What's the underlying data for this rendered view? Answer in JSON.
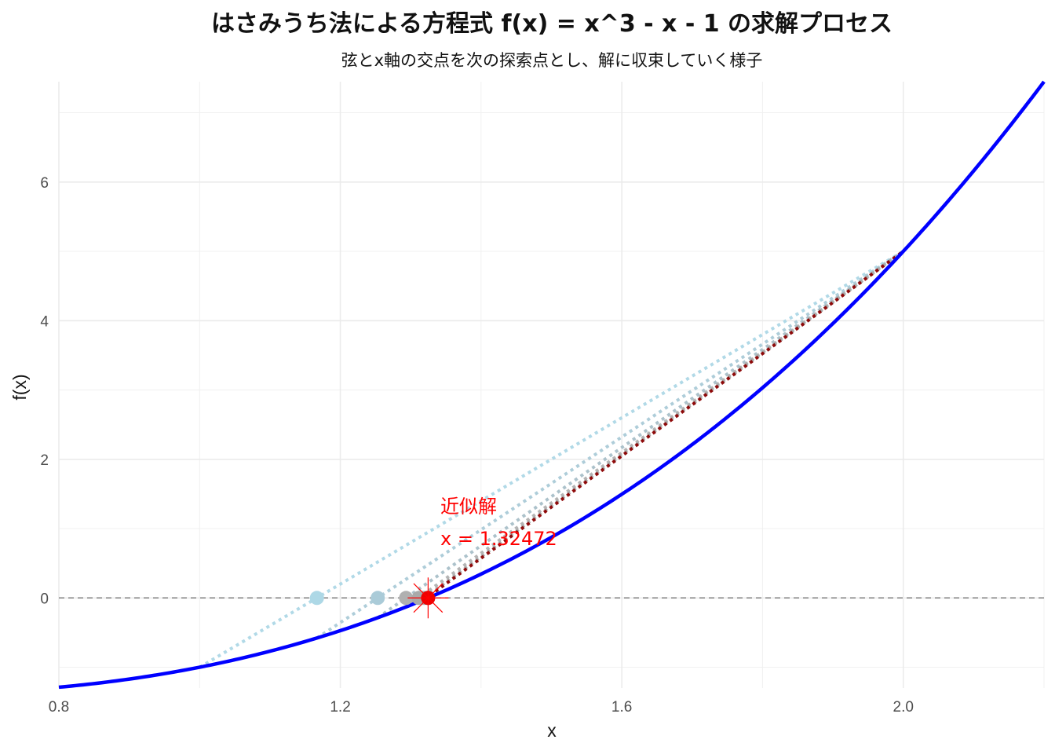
{
  "chart_data": {
    "type": "line",
    "title": "はさみうち法による方程式 f(x) = x^3 - x - 1 の求解プロセス",
    "subtitle": "弦とx軸の交点を次の探索点とし、解に収束していく様子",
    "xlabel": "x",
    "ylabel": "f(x)",
    "xlim": [
      0.8,
      2.2
    ],
    "ylim": [
      -1.3,
      7.448
    ],
    "x_ticks": [
      0.8,
      1.2,
      1.6,
      2.0
    ],
    "x_tick_labels": [
      "0.8",
      "1.2",
      "1.6",
      "2.0"
    ],
    "y_ticks": [
      0,
      2,
      4,
      6
    ],
    "y_tick_labels": [
      "0",
      "2",
      "4",
      "6"
    ],
    "grid": true,
    "curve": {
      "function": "x^3 - x - 1",
      "x_range": [
        0.8,
        2.2
      ],
      "color": "#0000ff"
    },
    "hline": {
      "y": 0,
      "style": "dashed",
      "color": "#808080"
    },
    "secant_lines": [
      {
        "x1": 1.0,
        "y1": -1.0,
        "x2": 2.0,
        "y2": 5.0,
        "color": "#add8e6"
      },
      {
        "x1": 1.1667,
        "y1": -0.5787,
        "x2": 2.0,
        "y2": 5.0,
        "color": "#aacbd8"
      },
      {
        "x1": 1.2531,
        "y1": -0.2854,
        "x2": 2.0,
        "y2": 5.0,
        "color": "#a8bfc9"
      },
      {
        "x1": 1.2934,
        "y1": -0.1295,
        "x2": 2.0,
        "y2": 5.0,
        "color": "#b0b0b0"
      },
      {
        "x1": 1.3113,
        "y1": -0.0566,
        "x2": 2.0,
        "y2": 5.0,
        "color": "#a9a9a9"
      },
      {
        "x1": 1.319,
        "y1": -0.0242,
        "x2": 2.0,
        "y2": 5.0,
        "color": "#8b0000"
      }
    ],
    "iteration_points": [
      {
        "x": 1.1667,
        "y": 0,
        "color": "#add8e6"
      },
      {
        "x": 1.2531,
        "y": 0,
        "color": "#aacbd8"
      },
      {
        "x": 1.2934,
        "y": 0,
        "color": "#b0b0b0"
      },
      {
        "x": 1.3113,
        "y": 0,
        "color": "#a9a9a9"
      },
      {
        "x": 1.319,
        "y": 0,
        "color": "#a9a9a9"
      },
      {
        "x": 1.3247,
        "y": 0,
        "color": "#8b0000"
      }
    ],
    "root": {
      "x": 1.32472,
      "y": 0,
      "color": "#ff0000"
    },
    "annotation": {
      "line1": "近似解",
      "line2": "x = 1.32472",
      "color": "#ff0000"
    }
  }
}
